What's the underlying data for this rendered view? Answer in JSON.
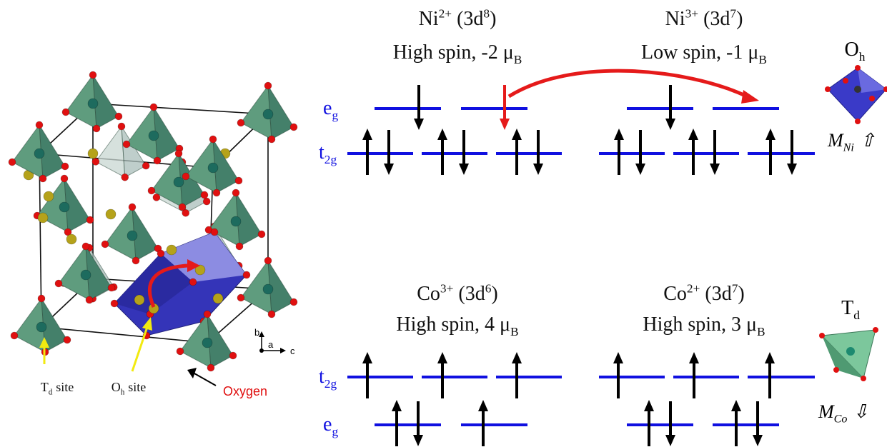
{
  "panels": [
    {
      "ion": "Ni",
      "charge": "2+",
      "shell": "(3d",
      "electrons": "8",
      "close": ")",
      "spin": "High spin, -2 μ",
      "unit": "B"
    },
    {
      "ion": "Ni",
      "charge": "3+",
      "shell": "(3d",
      "electrons": "7",
      "close": ")",
      "spin": "Low spin, -1 μ",
      "unit": "B"
    },
    {
      "ion": "Co",
      "charge": "3+",
      "shell": "(3d",
      "electrons": "6",
      "close": ")",
      "spin": "High spin, 4 μ",
      "unit": "B"
    },
    {
      "ion": "Co",
      "charge": "2+",
      "shell": "(3d",
      "electrons": "7",
      "close": ")",
      "spin": "High spin, 3 μ",
      "unit": "B"
    }
  ],
  "levels": {
    "eg": {
      "symbol": "e",
      "subscript": "g"
    },
    "t2g": {
      "symbol": "t",
      "subscript": "2g"
    }
  },
  "crystal": {
    "td_site": {
      "symbol": "T",
      "subscript": "d",
      "text": "site"
    },
    "oh_site": {
      "symbol": "O",
      "subscript": "h",
      "text": "site"
    },
    "oxygen": "Oxygen",
    "axes": {
      "a": "a",
      "b": "b",
      "c": "c"
    }
  },
  "icons": {
    "octahedral": {
      "symbol": "O",
      "subscript": "h",
      "moment": "M",
      "moment_subscript": "Ni",
      "direction": "⇧"
    },
    "tetrahedral": {
      "symbol": "T",
      "subscript": "d",
      "moment": "M",
      "moment_subscript": "Co",
      "direction": "⇩"
    }
  }
}
